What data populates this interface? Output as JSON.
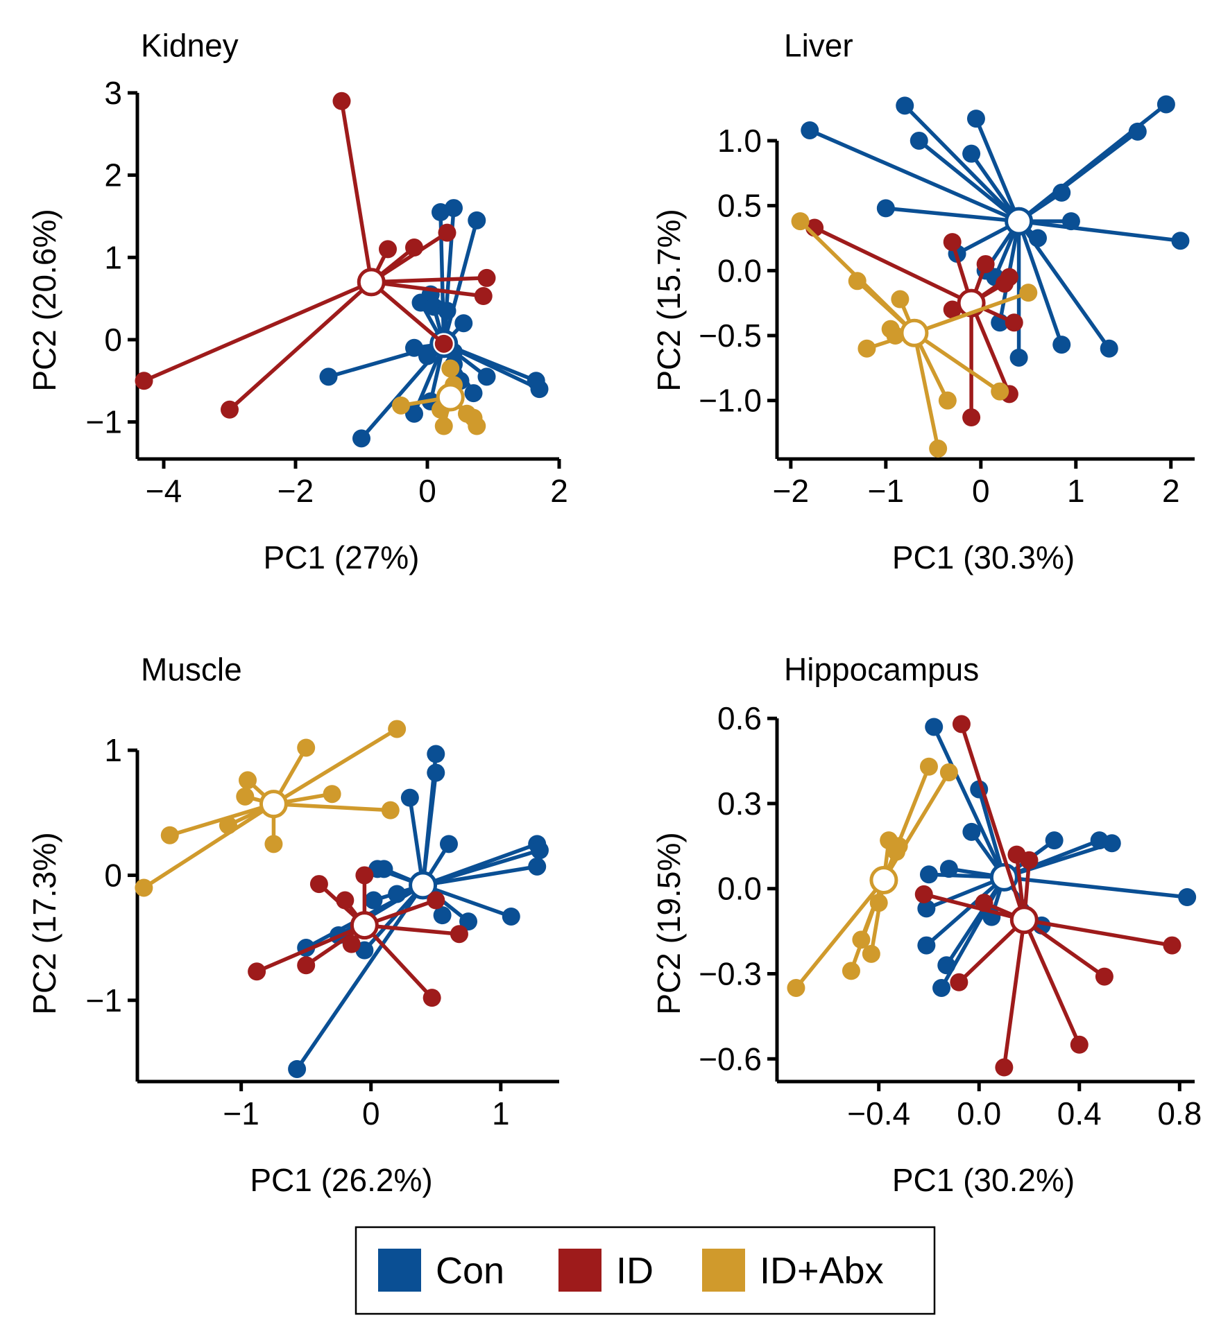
{
  "colors": {
    "Con": "#0a4f94",
    "ID": "#9e1b1b",
    "ID+Abx": "#d09a2c"
  },
  "legend": {
    "items": [
      {
        "key": "Con",
        "label": "Con"
      },
      {
        "key": "ID",
        "label": "ID"
      },
      {
        "key": "ID+Abx",
        "label": "ID+Abx"
      }
    ]
  },
  "chart_data": [
    {
      "type": "scatter",
      "title": "Kidney",
      "xlabel": "PC1 (27%)",
      "ylabel": "PC2 (20.6%)",
      "xlim": [
        -4.4,
        2.0
      ],
      "ylim": [
        -1.45,
        3.05
      ],
      "xticks": [
        -4,
        -2,
        0,
        2
      ],
      "xtick_labels": [
        "−4",
        "−2",
        "0",
        "2"
      ],
      "yticks": [
        -1,
        0,
        1,
        2,
        3
      ],
      "ytick_labels": [
        "−1",
        "0",
        "1",
        "2",
        "3"
      ],
      "series": [
        {
          "name": "Con",
          "centroid": [
            0.25,
            -0.05
          ],
          "points": [
            [
              0.2,
              1.55
            ],
            [
              0.4,
              1.6
            ],
            [
              0.75,
              1.45
            ],
            [
              -0.1,
              0.45
            ],
            [
              0.05,
              0.55
            ],
            [
              0.1,
              0.4
            ],
            [
              0.3,
              0.35
            ],
            [
              0.55,
              0.2
            ],
            [
              -0.2,
              -0.1
            ],
            [
              0.0,
              -0.2
            ],
            [
              0.4,
              -0.3
            ],
            [
              0.9,
              -0.45
            ],
            [
              1.65,
              -0.5
            ],
            [
              1.7,
              -0.6
            ],
            [
              -1.5,
              -0.45
            ],
            [
              0.7,
              -0.65
            ],
            [
              0.5,
              -0.5
            ],
            [
              -1.0,
              -1.2
            ],
            [
              -0.2,
              -0.9
            ],
            [
              0.05,
              -0.75
            ],
            [
              0.4,
              -0.15
            ]
          ]
        },
        {
          "name": "ID",
          "centroid": [
            -0.85,
            0.7
          ],
          "points": [
            [
              -1.3,
              2.9
            ],
            [
              -0.6,
              1.1
            ],
            [
              -0.2,
              1.12
            ],
            [
              0.3,
              1.3
            ],
            [
              0.9,
              0.75
            ],
            [
              0.85,
              0.53
            ],
            [
              -4.3,
              -0.5
            ],
            [
              -3.0,
              -0.85
            ],
            [
              0.25,
              -0.05
            ]
          ]
        },
        {
          "name": "ID+Abx",
          "centroid": [
            0.35,
            -0.7
          ],
          "points": [
            [
              -0.4,
              -0.8
            ],
            [
              0.2,
              -0.85
            ],
            [
              0.25,
              -1.05
            ],
            [
              0.7,
              -0.95
            ],
            [
              0.75,
              -1.05
            ],
            [
              0.35,
              -0.35
            ],
            [
              0.4,
              -0.55
            ],
            [
              0.6,
              -0.9
            ],
            [
              0.3,
              -0.75
            ]
          ]
        }
      ]
    },
    {
      "type": "scatter",
      "title": "Liver",
      "xlabel": "PC1 (30.3%)",
      "ylabel": "PC2 (15.7%)",
      "xlim": [
        -2.05,
        2.25
      ],
      "ylim": [
        -1.45,
        1.4
      ],
      "xticks": [
        -2,
        -1,
        0,
        1,
        2
      ],
      "xtick_labels": [
        "−2",
        "−1",
        "0",
        "1",
        "2"
      ],
      "yticks": [
        -1.0,
        -0.5,
        0.0,
        0.5,
        1.0
      ],
      "ytick_labels": [
        "−1.0",
        "−0.5",
        "0.0",
        "0.5",
        "1.0"
      ],
      "series": [
        {
          "name": "Con",
          "centroid": [
            0.4,
            0.38
          ],
          "points": [
            [
              -1.8,
              1.08
            ],
            [
              -0.8,
              1.27
            ],
            [
              -0.65,
              1.0
            ],
            [
              -0.05,
              1.17
            ],
            [
              -0.1,
              0.9
            ],
            [
              -1.0,
              0.48
            ],
            [
              0.85,
              0.6
            ],
            [
              1.65,
              1.07
            ],
            [
              1.95,
              1.28
            ],
            [
              0.95,
              0.38
            ],
            [
              2.1,
              0.23
            ],
            [
              0.6,
              0.25
            ],
            [
              -0.25,
              0.13
            ],
            [
              0.15,
              -0.05
            ],
            [
              0.2,
              -0.4
            ],
            [
              0.4,
              -0.67
            ],
            [
              0.85,
              -0.57
            ],
            [
              1.35,
              -0.6
            ],
            [
              0.05,
              0.0
            ]
          ]
        },
        {
          "name": "ID",
          "centroid": [
            -0.1,
            -0.25
          ],
          "points": [
            [
              -1.75,
              0.33
            ],
            [
              -0.3,
              0.22
            ],
            [
              0.05,
              0.05
            ],
            [
              0.25,
              -0.1
            ],
            [
              -0.3,
              -0.3
            ],
            [
              0.35,
              -0.4
            ],
            [
              0.3,
              -0.95
            ],
            [
              -0.1,
              -1.13
            ],
            [
              0.3,
              -0.05
            ]
          ]
        },
        {
          "name": "ID+Abx",
          "centroid": [
            -0.7,
            -0.48
          ],
          "points": [
            [
              -1.9,
              0.38
            ],
            [
              -1.3,
              -0.08
            ],
            [
              -0.85,
              -0.22
            ],
            [
              -0.95,
              -0.45
            ],
            [
              -1.2,
              -0.6
            ],
            [
              -0.9,
              -0.5
            ],
            [
              0.5,
              -0.17
            ],
            [
              0.2,
              -0.93
            ],
            [
              -0.35,
              -1.0
            ],
            [
              -0.45,
              -1.37
            ]
          ]
        }
      ]
    },
    {
      "type": "scatter",
      "title": "Muscle",
      "xlabel": "PC1 (26.2%)",
      "ylabel": "PC2 (17.3%)",
      "xlim": [
        -1.8,
        1.45
      ],
      "ylim": [
        -1.65,
        1.3
      ],
      "xticks": [
        -1,
        0,
        1
      ],
      "xtick_labels": [
        "−1",
        "0",
        "1"
      ],
      "yticks": [
        -1,
        0,
        1
      ],
      "ytick_labels": [
        "−1",
        "0",
        "1"
      ],
      "series": [
        {
          "name": "Con",
          "centroid": [
            0.4,
            -0.08
          ],
          "points": [
            [
              0.5,
              0.97
            ],
            [
              0.5,
              0.82
            ],
            [
              0.3,
              0.62
            ],
            [
              0.6,
              0.25
            ],
            [
              1.28,
              0.25
            ],
            [
              1.3,
              0.2
            ],
            [
              1.28,
              0.07
            ],
            [
              0.05,
              0.05
            ],
            [
              0.1,
              0.05
            ],
            [
              0.02,
              -0.2
            ],
            [
              0.55,
              -0.32
            ],
            [
              0.75,
              -0.37
            ],
            [
              1.08,
              -0.33
            ],
            [
              -0.5,
              -0.58
            ],
            [
              -0.25,
              -0.48
            ],
            [
              -0.05,
              -0.6
            ],
            [
              -0.57,
              -1.55
            ],
            [
              0.2,
              -0.15
            ]
          ]
        },
        {
          "name": "ID",
          "centroid": [
            -0.05,
            -0.4
          ],
          "points": [
            [
              -0.4,
              -0.07
            ],
            [
              -0.2,
              -0.2
            ],
            [
              -0.05,
              0.0
            ],
            [
              0.5,
              -0.2
            ],
            [
              0.68,
              -0.47
            ],
            [
              0.47,
              -0.98
            ],
            [
              -0.88,
              -0.77
            ],
            [
              -0.5,
              -0.72
            ],
            [
              -0.15,
              -0.55
            ]
          ]
        },
        {
          "name": "ID+Abx",
          "centroid": [
            -0.75,
            0.57
          ],
          "points": [
            [
              -0.5,
              1.02
            ],
            [
              0.2,
              1.17
            ],
            [
              -0.95,
              0.76
            ],
            [
              -0.97,
              0.63
            ],
            [
              -0.3,
              0.65
            ],
            [
              0.15,
              0.52
            ],
            [
              -1.55,
              0.32
            ],
            [
              -1.75,
              -0.1
            ],
            [
              -0.75,
              0.25
            ],
            [
              -1.1,
              0.4
            ]
          ]
        }
      ]
    },
    {
      "type": "scatter",
      "title": "Hippocampus",
      "xlabel": "PC1 (30.2%)",
      "ylabel": "PC2 (19.5%)",
      "xlim": [
        -0.77,
        0.86
      ],
      "ylim": [
        -0.68,
        0.62
      ],
      "xticks": [
        -0.4,
        0.0,
        0.4,
        0.8
      ],
      "xtick_labels": [
        "−0.4",
        "0.0",
        "0.4",
        "0.8"
      ],
      "yticks": [
        -0.6,
        -0.3,
        0.0,
        0.3,
        0.6
      ],
      "ytick_labels": [
        "−0.6",
        "−0.3",
        "0.0",
        "0.3",
        "0.6"
      ],
      "series": [
        {
          "name": "Con",
          "centroid": [
            0.1,
            0.04
          ],
          "points": [
            [
              -0.18,
              0.57
            ],
            [
              0.0,
              0.35
            ],
            [
              -0.03,
              0.2
            ],
            [
              0.3,
              0.17
            ],
            [
              0.48,
              0.17
            ],
            [
              0.53,
              0.16
            ],
            [
              0.83,
              -0.03
            ],
            [
              -0.2,
              0.05
            ],
            [
              -0.12,
              0.07
            ],
            [
              -0.21,
              -0.07
            ],
            [
              -0.21,
              -0.2
            ],
            [
              -0.13,
              -0.27
            ],
            [
              -0.15,
              -0.35
            ],
            [
              0.25,
              -0.13
            ],
            [
              0.05,
              -0.1
            ]
          ]
        },
        {
          "name": "ID",
          "centroid": [
            0.18,
            -0.11
          ],
          "points": [
            [
              -0.07,
              0.58
            ],
            [
              0.15,
              0.12
            ],
            [
              0.2,
              0.1
            ],
            [
              -0.22,
              -0.02
            ],
            [
              -0.08,
              -0.33
            ],
            [
              0.77,
              -0.2
            ],
            [
              0.5,
              -0.31
            ],
            [
              0.4,
              -0.55
            ],
            [
              0.1,
              -0.63
            ],
            [
              0.02,
              -0.05
            ]
          ]
        },
        {
          "name": "ID+Abx",
          "centroid": [
            -0.38,
            0.03
          ],
          "points": [
            [
              -0.2,
              0.43
            ],
            [
              -0.12,
              0.41
            ],
            [
              -0.36,
              0.17
            ],
            [
              -0.32,
              0.15
            ],
            [
              -0.33,
              0.13
            ],
            [
              -0.47,
              -0.18
            ],
            [
              -0.43,
              -0.23
            ],
            [
              -0.51,
              -0.29
            ],
            [
              -0.73,
              -0.35
            ],
            [
              -0.4,
              -0.05
            ]
          ]
        }
      ]
    }
  ]
}
